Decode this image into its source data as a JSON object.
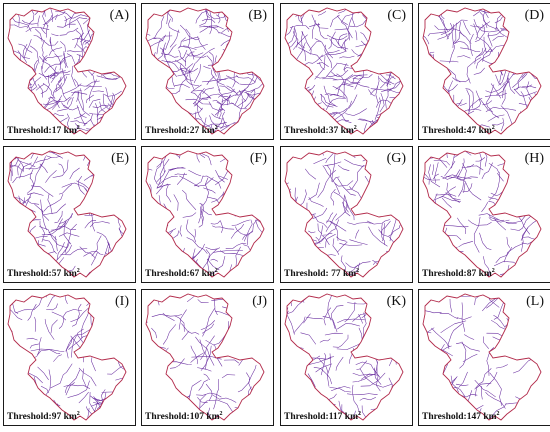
{
  "colors": {
    "stream": "#6a2fa0",
    "boundary": "#b22a4a",
    "frame": "#1a1a1a"
  },
  "panels": [
    {
      "letter": "(A)",
      "threshold": "Threshold:17 km",
      "unit_sup": "2",
      "density": 1.0
    },
    {
      "letter": "(B)",
      "threshold": "Threshold:27 km",
      "unit_sup": "2",
      "density": 0.82
    },
    {
      "letter": "(C)",
      "threshold": "Threshold:37 km",
      "unit_sup": "2",
      "density": 0.7
    },
    {
      "letter": "(D)",
      "threshold": "Threshold:47 km",
      "unit_sup": "2",
      "density": 0.62
    },
    {
      "letter": "(E)",
      "threshold": "Threshold:57 km",
      "unit_sup": "2",
      "density": 0.55
    },
    {
      "letter": "(F)",
      "threshold": "Threshold:67 km",
      "unit_sup": "2",
      "density": 0.5
    },
    {
      "letter": "(G)",
      "threshold": "Threshold: 77 km",
      "unit_sup": "2",
      "density": 0.46
    },
    {
      "letter": "(H)",
      "threshold": "Threshold:87 km",
      "unit_sup": "2",
      "density": 0.43
    },
    {
      "letter": "(I)",
      "threshold": "Threshold:97 km",
      "unit_sup": "2",
      "density": 0.4
    },
    {
      "letter": "(J)",
      "threshold": "Threshold:107 km",
      "unit_sup": "2",
      "density": 0.37
    },
    {
      "letter": "(K)",
      "threshold": "Threshold:117 km",
      "unit_sup": "2",
      "density": 0.35
    },
    {
      "letter": "(L)",
      "threshold": "Threshold:147 km",
      "unit_sup": "2",
      "density": 0.33
    }
  ]
}
